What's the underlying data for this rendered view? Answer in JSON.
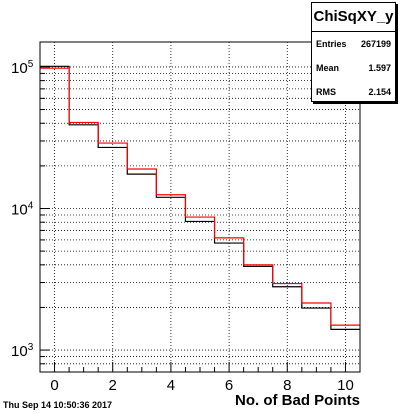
{
  "stats": {
    "title": "ChiSqXY_y",
    "rows": [
      {
        "label": "Entries",
        "value": "267199"
      },
      {
        "label": "Mean",
        "value": "1.597"
      },
      {
        "label": "RMS",
        "value": "2.154"
      }
    ]
  },
  "footer_text": "Thu Sep 14 10:50:36 2017",
  "chart_data": {
    "type": "histogram",
    "xlabel": "No. of Bad Points",
    "ylabel": "",
    "xlim": [
      -0.5,
      10.5
    ],
    "ylim": [
      700,
      150000
    ],
    "yscale": "log",
    "grid": true,
    "xticks": [
      "0",
      "2",
      "4",
      "6",
      "8",
      "10"
    ],
    "yticks": [
      "10^5",
      "10^4",
      "10^3"
    ],
    "bin_edges": [
      -0.5,
      0.5,
      1.5,
      2.5,
      3.5,
      4.5,
      5.5,
      6.5,
      7.5,
      8.5,
      9.5,
      10.5
    ],
    "series": [
      {
        "color": "#000000",
        "values": [
          101000,
          39000,
          27000,
          17500,
          12000,
          8100,
          5700,
          3900,
          2800,
          1980,
          1400
        ]
      },
      {
        "color": "#ff0000",
        "values": [
          98000,
          40500,
          29000,
          19000,
          12500,
          8700,
          6200,
          4000,
          2950,
          2150,
          1500
        ]
      }
    ]
  }
}
